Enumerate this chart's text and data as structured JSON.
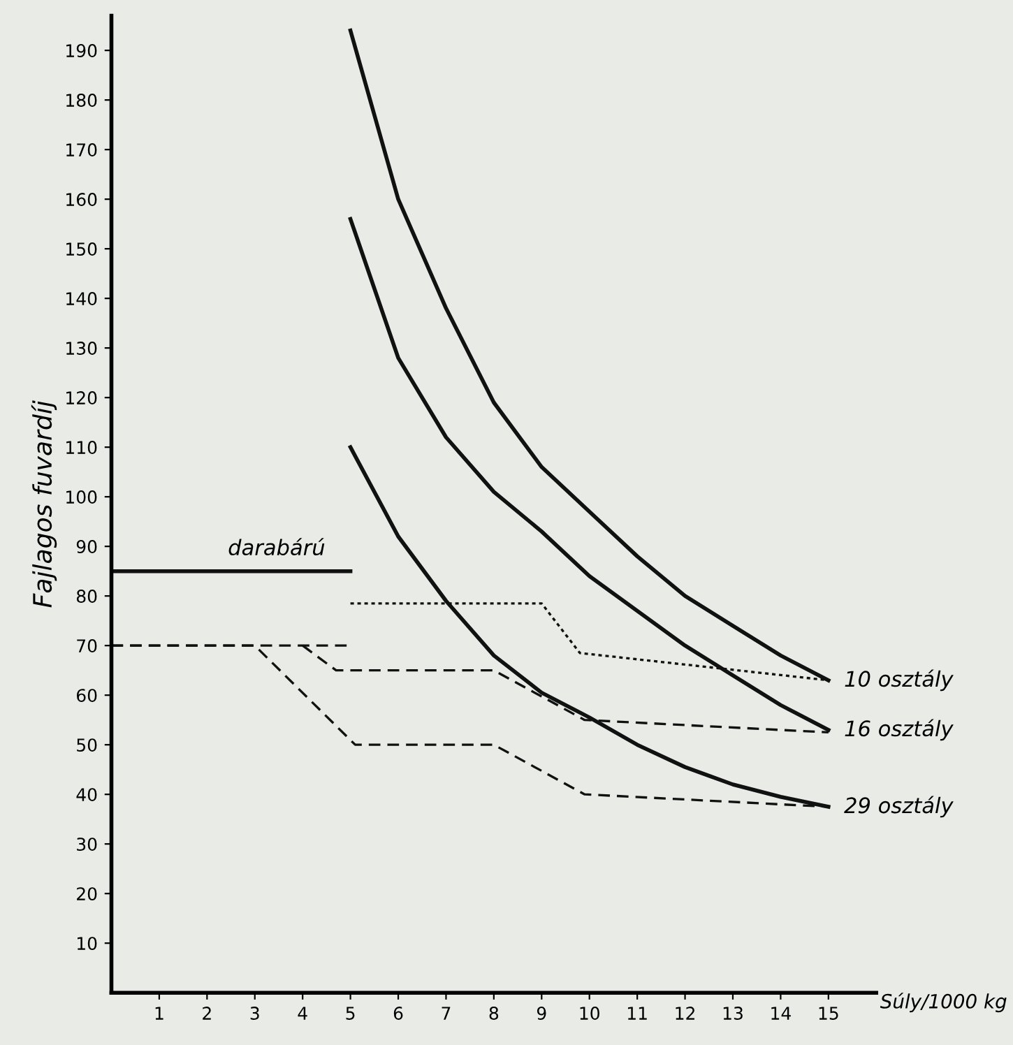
{
  "chart_data": {
    "type": "line",
    "xlabel": "Súly/1000 kg",
    "ylabel": "Fajlagos fuvardíj",
    "xlim": [
      0,
      16
    ],
    "ylim": [
      0,
      197
    ],
    "xticks": [
      1,
      2,
      3,
      4,
      5,
      6,
      7,
      8,
      9,
      10,
      11,
      12,
      13,
      14,
      15
    ],
    "yticks": [
      10,
      20,
      30,
      40,
      50,
      60,
      70,
      80,
      90,
      100,
      110,
      120,
      130,
      140,
      150,
      160,
      170,
      180,
      190
    ],
    "grid": false,
    "legend": false,
    "marker": "none",
    "series": [
      {
        "name": "darabárú",
        "color": "#111111",
        "line_style": "solid",
        "x": [
          0,
          5
        ],
        "values": [
          85,
          85
        ]
      },
      {
        "name": "10 osztály",
        "color": "#111111",
        "line_style": "solid",
        "x": [
          5,
          6,
          7,
          8,
          9,
          10,
          11,
          12,
          13,
          14,
          15
        ],
        "values": [
          194,
          160,
          138,
          119,
          106,
          97,
          88,
          80,
          74,
          68,
          63
        ]
      },
      {
        "name": "16 osztály",
        "color": "#111111",
        "line_style": "solid",
        "x": [
          5,
          6,
          7,
          8,
          9,
          10,
          11,
          12,
          13,
          14,
          15
        ],
        "values": [
          156,
          128,
          112,
          101,
          93,
          84,
          77,
          70,
          64,
          58,
          53
        ]
      },
      {
        "name": "29 osztály",
        "color": "#111111",
        "line_style": "solid",
        "x": [
          5,
          6,
          7,
          8,
          9,
          10,
          11,
          12,
          13,
          14,
          15
        ],
        "values": [
          110,
          92,
          79,
          68,
          60.5,
          55.5,
          50,
          45.5,
          42,
          39.5,
          37.5
        ]
      },
      {
        "color": "#111111",
        "line_style": "dashed",
        "x": [
          0,
          5
        ],
        "values": [
          70,
          70
        ]
      },
      {
        "color": "#111111",
        "line_style": "dashed",
        "x": [
          0,
          3,
          5.1,
          8,
          9.9,
          15
        ],
        "values": [
          70,
          70,
          50,
          50,
          40,
          37.5
        ]
      },
      {
        "color": "#111111",
        "line_style": "dashed",
        "x": [
          4,
          4.7,
          8,
          9.9,
          15
        ],
        "values": [
          70,
          65,
          65,
          55,
          52.5
        ]
      },
      {
        "color": "#111111",
        "line_style": "dotted",
        "x": [
          5,
          9,
          9.8,
          15
        ],
        "values": [
          78.5,
          78.5,
          68.5,
          63
        ]
      }
    ]
  }
}
